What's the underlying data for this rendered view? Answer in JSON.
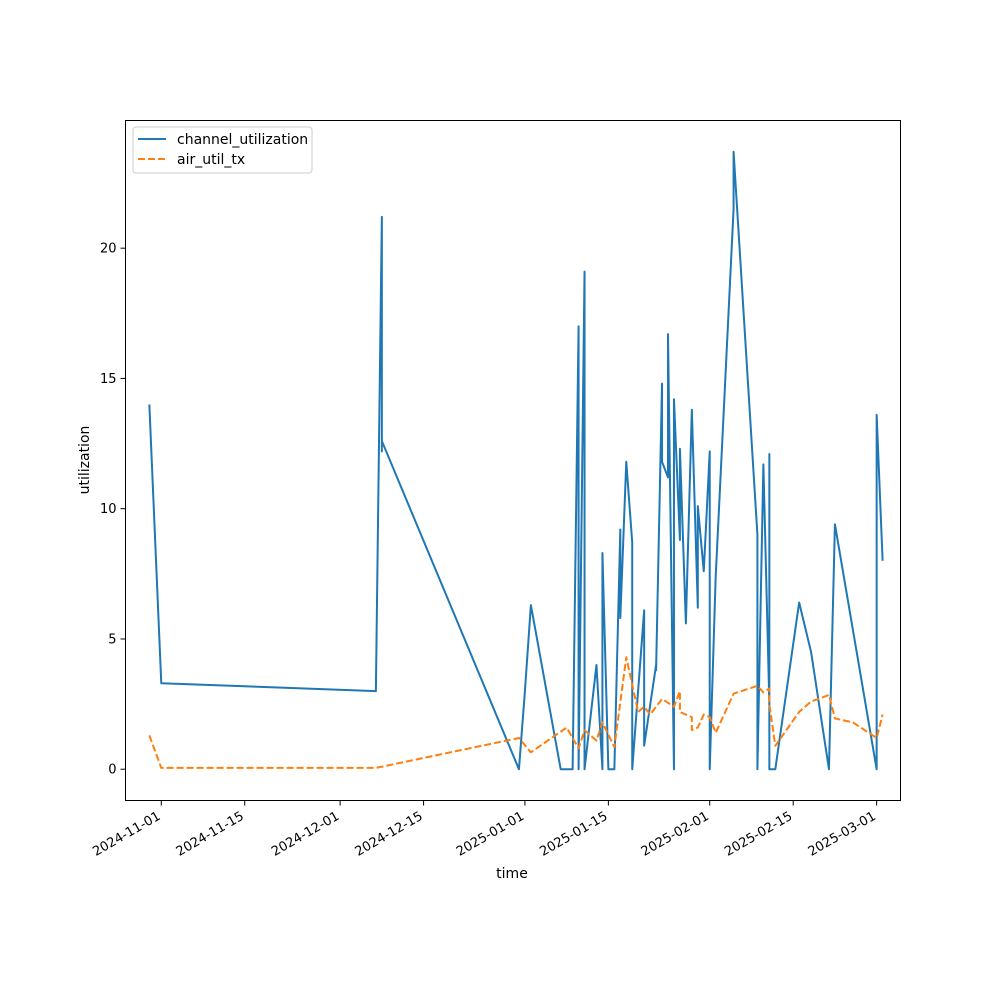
{
  "chart_data": {
    "type": "line",
    "title": "",
    "xlabel": "time",
    "ylabel": "utilization",
    "x_axis": "date",
    "xlim": [
      "2024-10-26",
      "2025-03-05"
    ],
    "ylim": [
      -1.2,
      24.9
    ],
    "x_ticks": [
      "2024-11-01",
      "2024-11-15",
      "2024-12-01",
      "2024-12-15",
      "2025-01-01",
      "2025-01-15",
      "2025-02-01",
      "2025-02-15",
      "2025-03-01"
    ],
    "y_ticks": [
      0,
      5,
      10,
      15,
      20
    ],
    "grid": false,
    "legend": "top-left",
    "series": [
      {
        "name": "channel_utilization",
        "color": "#1f77b4",
        "dash": "solid",
        "points": [
          [
            "2024-10-30",
            14.0
          ],
          [
            "2024-11-01",
            3.3
          ],
          [
            "2024-12-07",
            3.0
          ],
          [
            "2024-12-08",
            21.2
          ],
          [
            "2024-12-08",
            12.2
          ],
          [
            "2024-12-08",
            12.6
          ],
          [
            "2024-12-31",
            0.0
          ],
          [
            "2025-01-01",
            3.0
          ],
          [
            "2025-01-02",
            6.3
          ],
          [
            "2025-01-07",
            0.0
          ],
          [
            "2025-01-09",
            0.0
          ],
          [
            "2025-01-10",
            17.0
          ],
          [
            "2025-01-10",
            0.0
          ],
          [
            "2025-01-11",
            19.1
          ],
          [
            "2025-01-11",
            0.0
          ],
          [
            "2025-01-13",
            4.0
          ],
          [
            "2025-01-14",
            0.0
          ],
          [
            "2025-01-14",
            8.3
          ],
          [
            "2025-01-15",
            0.0
          ],
          [
            "2025-01-16",
            0.0
          ],
          [
            "2025-01-17",
            9.2
          ],
          [
            "2025-01-17",
            5.8
          ],
          [
            "2025-01-18",
            11.8
          ],
          [
            "2025-01-19",
            8.7
          ],
          [
            "2025-01-19",
            0.0
          ],
          [
            "2025-01-21",
            6.1
          ],
          [
            "2025-01-21",
            0.9
          ],
          [
            "2025-01-23",
            4.0
          ],
          [
            "2025-01-23",
            3.8
          ],
          [
            "2025-01-24",
            14.8
          ],
          [
            "2025-01-24",
            11.8
          ],
          [
            "2025-01-25",
            11.2
          ],
          [
            "2025-01-25",
            16.7
          ],
          [
            "2025-01-26",
            0.0
          ],
          [
            "2025-01-26",
            14.2
          ],
          [
            "2025-01-27",
            8.8
          ],
          [
            "2025-01-27",
            12.3
          ],
          [
            "2025-01-28",
            5.6
          ],
          [
            "2025-01-29",
            13.8
          ],
          [
            "2025-01-30",
            6.2
          ],
          [
            "2025-01-30",
            10.1
          ],
          [
            "2025-01-31",
            7.6
          ],
          [
            "2025-02-01",
            12.2
          ],
          [
            "2025-02-01",
            0.0
          ],
          [
            "2025-02-02",
            7.4
          ],
          [
            "2025-02-05",
            21.5
          ],
          [
            "2025-02-05",
            23.7
          ],
          [
            "2025-02-09",
            9.0
          ],
          [
            "2025-02-09",
            0.0
          ],
          [
            "2025-02-10",
            11.7
          ],
          [
            "2025-02-11",
            2.5
          ],
          [
            "2025-02-11",
            12.1
          ],
          [
            "2025-02-11",
            0.0
          ],
          [
            "2025-02-12",
            0.0
          ],
          [
            "2025-02-16",
            6.4
          ],
          [
            "2025-02-18",
            4.5
          ],
          [
            "2025-02-21",
            0.0
          ],
          [
            "2025-02-21",
            0.0
          ],
          [
            "2025-02-22",
            9.4
          ],
          [
            "2025-03-01",
            0.0
          ],
          [
            "2025-03-01",
            13.6
          ],
          [
            "2025-03-02",
            8.0
          ]
        ]
      },
      {
        "name": "air_util_tx",
        "color": "#ff7f0e",
        "dash": "dashed",
        "points": [
          [
            "2024-10-30",
            1.3
          ],
          [
            "2024-11-01",
            0.05
          ],
          [
            "2024-12-07",
            0.05
          ],
          [
            "2024-12-31",
            1.2
          ],
          [
            "2025-01-02",
            0.65
          ],
          [
            "2025-01-08",
            1.6
          ],
          [
            "2025-01-10",
            0.8
          ],
          [
            "2025-01-11",
            1.5
          ],
          [
            "2025-01-13",
            1.1
          ],
          [
            "2025-01-14",
            1.8
          ],
          [
            "2025-01-16",
            0.85
          ],
          [
            "2025-01-18",
            4.3
          ],
          [
            "2025-01-20",
            2.2
          ],
          [
            "2025-01-21",
            2.4
          ],
          [
            "2025-01-22",
            2.1
          ],
          [
            "2025-01-24",
            2.7
          ],
          [
            "2025-01-26",
            2.4
          ],
          [
            "2025-01-27",
            3.0
          ],
          [
            "2025-01-27",
            2.2
          ],
          [
            "2025-01-29",
            2.0
          ],
          [
            "2025-01-29",
            1.5
          ],
          [
            "2025-01-30",
            1.6
          ],
          [
            "2025-01-31",
            2.1
          ],
          [
            "2025-02-01",
            2.0
          ],
          [
            "2025-02-02",
            1.4
          ],
          [
            "2025-02-05",
            2.9
          ],
          [
            "2025-02-09",
            3.2
          ],
          [
            "2025-02-10",
            2.95
          ],
          [
            "2025-02-11",
            3.1
          ],
          [
            "2025-02-11",
            2.5
          ],
          [
            "2025-02-12",
            0.9
          ],
          [
            "2025-02-16",
            2.2
          ],
          [
            "2025-02-18",
            2.6
          ],
          [
            "2025-02-21",
            2.85
          ],
          [
            "2025-02-22",
            1.95
          ],
          [
            "2025-02-25",
            1.8
          ],
          [
            "2025-03-01",
            1.2
          ],
          [
            "2025-03-02",
            2.1
          ]
        ]
      }
    ]
  }
}
